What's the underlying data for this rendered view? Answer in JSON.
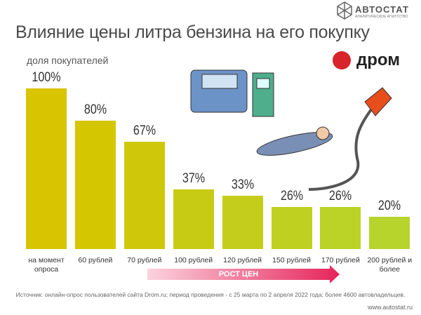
{
  "chart_data": {
    "type": "bar",
    "title": "Влияние цены литра бензина на его покупку",
    "subtitle": "доля покупателей",
    "categories": [
      "на момент опроса",
      "60 рублей",
      "70 рублей",
      "100 рублей",
      "120 рублей",
      "150 рублей",
      "170 рублей",
      "200 рублей и более"
    ],
    "values": [
      100,
      80,
      67,
      37,
      33,
      26,
      26,
      20
    ],
    "value_labels": [
      "100%",
      "80%",
      "67%",
      "37%",
      "33%",
      "26%",
      "26%",
      "20%"
    ],
    "colors": [
      "#d8c400",
      "#d4c600",
      "#cfc80a",
      "#c8cb14",
      "#c4cd1a",
      "#bfd020",
      "#bbd226",
      "#b6d42c"
    ],
    "arrow_label": "РОСТ ЦЕН",
    "source": "Источник: онлайн-опрос пользователей сайта Drom.ru; период проведения - с 25 марта по 2 апреля 2022 года; более 4600 автовладельцев.",
    "brand": "АВТОСТАТ",
    "brand_subtitle": "АНАЛИТИЧЕСКОЕ АГЕНТСТВО",
    "partner": "дром",
    "website": "www.autostat.ru"
  }
}
